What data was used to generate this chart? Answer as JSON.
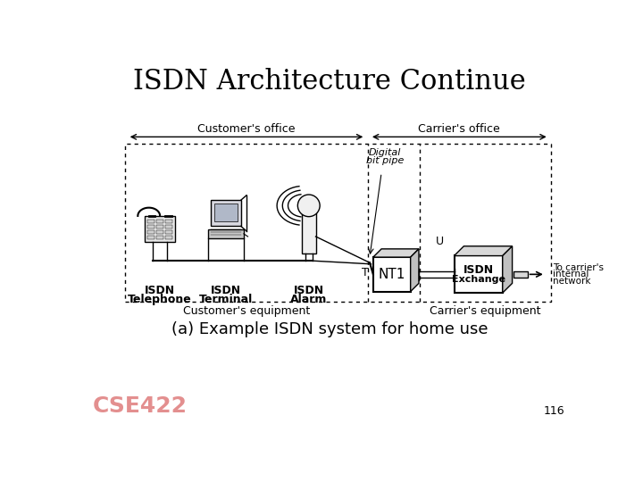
{
  "title": "ISDN Architecture Continue",
  "subtitle": "(a) Example ISDN system for home use",
  "page_number": "116",
  "background_color": "#ffffff",
  "title_fontsize": 22,
  "subtitle_fontsize": 13,
  "label_fontsize": 8,
  "small_fontsize": 7,
  "cse_label": "CSE422",
  "cse_color": "#cc3333"
}
